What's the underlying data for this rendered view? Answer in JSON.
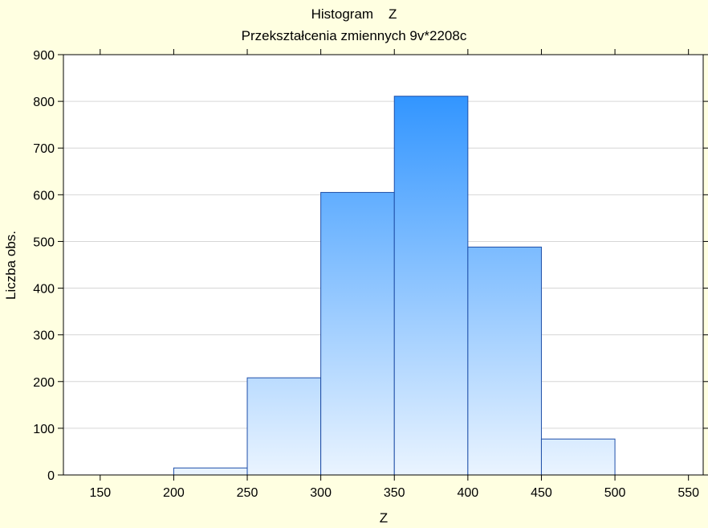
{
  "chart_data": {
    "type": "bar",
    "title": "Histogram    Z",
    "subtitle": "Przekształcenia zmiennych 9v*2208c",
    "xlabel": "Z",
    "ylabel": "Liczba obs.",
    "xlim": [
      125,
      560
    ],
    "ylim": [
      0,
      900
    ],
    "x_ticks": [
      150,
      200,
      250,
      300,
      350,
      400,
      450,
      500,
      550
    ],
    "y_ticks": [
      0,
      100,
      200,
      300,
      400,
      500,
      600,
      700,
      800,
      900
    ],
    "bin_edges": [
      [
        150,
        200
      ],
      [
        200,
        250
      ],
      [
        250,
        300
      ],
      [
        300,
        350
      ],
      [
        350,
        400
      ],
      [
        400,
        450
      ],
      [
        450,
        500
      ],
      [
        500,
        550
      ]
    ],
    "values": [
      0,
      15,
      208,
      605,
      811,
      488,
      77,
      0
    ],
    "grid": true,
    "colors": {
      "background": "#ffffe1",
      "plot_background": "#ffffff",
      "bar_top": "#1e8bff",
      "bar_bottom": "#eaf4ff",
      "bar_edge": "#1f4fa8",
      "grid": "#d6d6d6"
    }
  }
}
